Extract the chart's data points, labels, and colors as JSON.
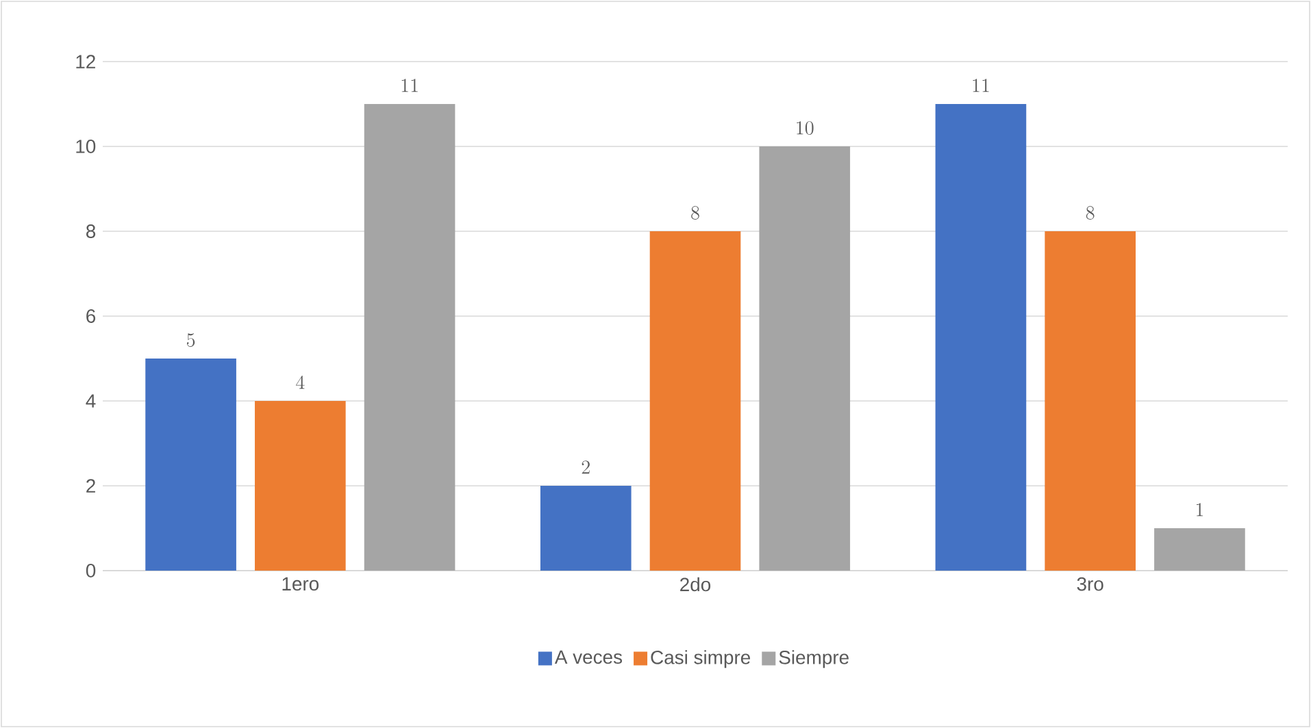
{
  "chart_data": {
    "type": "bar",
    "categories": [
      "1ero",
      "2do",
      "3ro"
    ],
    "series": [
      {
        "name": "A veces",
        "color": "#4472c4",
        "values": [
          5,
          2,
          11
        ]
      },
      {
        "name": "Casi simpre",
        "color": "#ed7d31",
        "values": [
          4,
          8,
          8
        ]
      },
      {
        "name": "Siempre",
        "color": "#a5a5a5",
        "values": [
          11,
          10,
          1
        ]
      }
    ],
    "ylim": [
      0,
      12
    ],
    "yticks": [
      0,
      2,
      4,
      6,
      8,
      10,
      12
    ],
    "grid": "y",
    "legend": "bottom",
    "data_labels": true
  }
}
